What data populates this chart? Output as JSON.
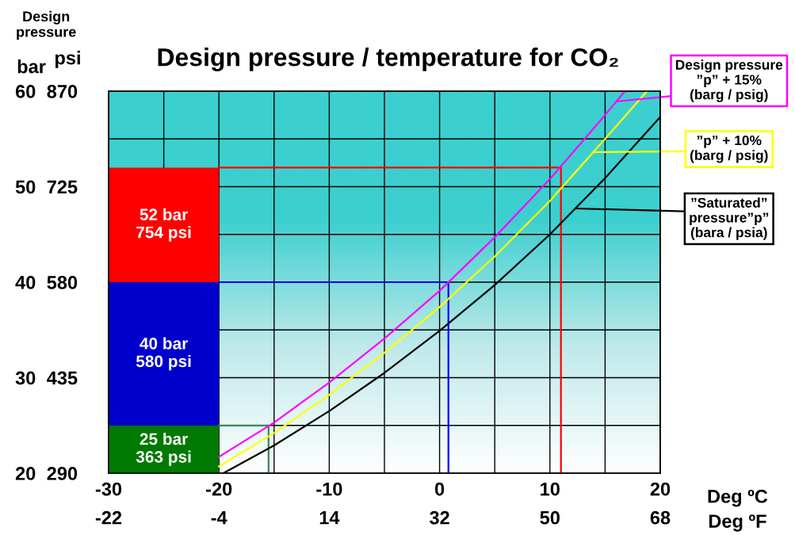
{
  "chart_data": {
    "type": "line",
    "title": "Design pressure / temperature for CO₂",
    "xlabel": "Deg ºC",
    "x2label": "Deg ºF",
    "ylabel": "bar",
    "y2label": "psi",
    "annotations": [
      "Design\npressure",
      "25 bar\n363 psi",
      "40 bar\n580 psi",
      "52 bar\n754 psi"
    ],
    "xlim": [
      -30,
      20
    ],
    "xticks": [
      -30,
      {
        "value": -25,
        "label": null
      },
      -20,
      {
        "value": -15,
        "label": null
      },
      -10,
      {
        "value": -5,
        "label": null
      },
      0,
      {
        "value": 5,
        "label": null
      },
      10,
      {
        "value": 15,
        "label": null
      },
      20
    ],
    "x2lim": [
      -22,
      68
    ],
    "x2ticks": [
      -22,
      -4,
      14,
      32,
      50,
      68
    ],
    "ylim": [
      20,
      60
    ],
    "yticks": [
      20,
      {
        "value": 25,
        "label": null
      },
      30,
      {
        "value": 35,
        "label": null
      },
      40,
      {
        "value": 45,
        "label": null
      },
      50,
      {
        "value": 55,
        "label": null
      },
      60
    ],
    "y2lim": [
      290,
      870
    ],
    "y2ticks": [
      290,
      435,
      580,
      725,
      870
    ],
    "grid": true,
    "series": [
      {
        "type": "bar",
        "x": [
          -25
        ],
        "base": [
          20
        ],
        "values": [
          5
        ],
        "color": "#007a00"
      },
      {
        "type": "bar",
        "x": [
          -25
        ],
        "base": [
          25
        ],
        "values": [
          15
        ],
        "color": "#0000cc"
      },
      {
        "type": "bar",
        "x": [
          -25
        ],
        "base": [
          40
        ],
        "values": [
          12
        ],
        "color": "#ff0000"
      },
      {
        "color": "#2e8b57",
        "x": [
          -20,
          -15.5,
          -15.5
        ],
        "values": [
          25,
          25,
          20
        ]
      },
      {
        "color": "#0000ff",
        "x": [
          -20,
          0.8,
          0.8
        ],
        "values": [
          40,
          40,
          20
        ]
      },
      {
        "color": "#ff0000",
        "x": [
          -20,
          11,
          11
        ],
        "values": [
          52,
          52,
          20
        ]
      },
      {
        "name": "Design pressure\n”p” + 15%\n(barg / psig)",
        "color": "#ff00ff",
        "x": [
          -20,
          -15,
          -10,
          -5,
          0,
          5,
          10,
          15,
          16.8
        ],
        "values": [
          21.7,
          25.3,
          29.5,
          34.1,
          39.1,
          44.7,
          50.8,
          57.5,
          60
        ]
      },
      {
        "name": "”p” + 10%\n(barg / psig)",
        "color": "#ffff00",
        "x": [
          -20,
          -15,
          -10,
          -5,
          0,
          5,
          10,
          15,
          18.8
        ],
        "values": [
          20.7,
          24.2,
          28.2,
          32.6,
          37.4,
          42.7,
          48.5,
          55.0,
          60
        ]
      },
      {
        "name": "”Saturated”\npressure”p”\n(bara / psia)",
        "color": "#000000",
        "x": [
          -19.6,
          -15,
          -10,
          -5,
          0,
          5,
          10,
          15,
          20
        ],
        "values": [
          20.0,
          22.9,
          26.5,
          30.5,
          34.9,
          39.7,
          45.0,
          50.9,
          57.3
        ]
      }
    ]
  }
}
